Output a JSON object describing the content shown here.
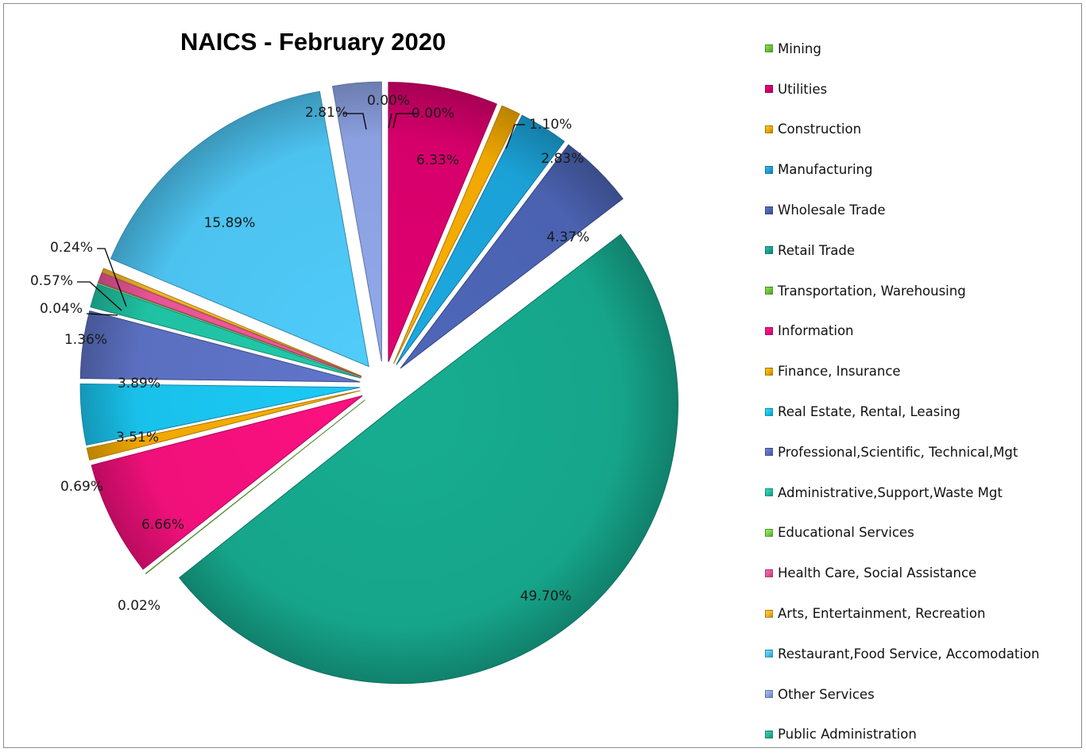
{
  "chart_data": {
    "type": "pie",
    "title": "NAICS - February 2020",
    "legend_position": "right",
    "slices": [
      {
        "label": "Mining",
        "value": 0.0,
        "display": "0.00%",
        "color": "#6cc23a"
      },
      {
        "label": "Utilities",
        "value": 6.33,
        "display": "6.33%",
        "color": "#d6006b"
      },
      {
        "label": "Construction",
        "value": 1.1,
        "display": "1.10%",
        "color": "#f0a800"
      },
      {
        "label": "Manufacturing",
        "value": 2.83,
        "display": "2.83%",
        "color": "#1ba1d6"
      },
      {
        "label": "Wholesale Trade",
        "value": 4.37,
        "display": "4.37%",
        "color": "#4a62b0"
      },
      {
        "label": "Retail Trade",
        "value": 49.7,
        "display": "49.70%",
        "color": "#16a58a"
      },
      {
        "label": "Transportation, Warehousing",
        "value": 0.02,
        "display": "0.02%",
        "color": "#6cc23a"
      },
      {
        "label": "Information",
        "value": 6.66,
        "display": "6.66%",
        "color": "#f0107a"
      },
      {
        "label": "Finance, Insurance",
        "value": 0.69,
        "display": "0.69%",
        "color": "#f0a800"
      },
      {
        "label": "Real Estate, Rental, Leasing",
        "value": 3.51,
        "display": "3.51%",
        "color": "#19c1ea"
      },
      {
        "label": "Professional,Scientific, Technical,Mgt",
        "value": 3.89,
        "display": "3.89%",
        "color": "#5b6fc0"
      },
      {
        "label": "Administrative,Support,Waste Mgt",
        "value": 1.36,
        "display": "1.36%",
        "color": "#1fc1a2"
      },
      {
        "label": "Educational Services",
        "value": 0.04,
        "display": "0.04%",
        "color": "#7ad04a"
      },
      {
        "label": "Health Care, Social Assistance",
        "value": 0.57,
        "display": "0.57%",
        "color": "#e85596"
      },
      {
        "label": "Arts, Entertainment, Recreation",
        "value": 0.24,
        "display": "0.24%",
        "color": "#f2b22a"
      },
      {
        "label": "Restaurant,Food Service, Accomodation",
        "value": 15.89,
        "display": "15.89%",
        "color": "#4cc2ef"
      },
      {
        "label": "Other Services",
        "value": 2.81,
        "display": "2.81%",
        "color": "#8aa0e0"
      },
      {
        "label": "Public Administration",
        "value": 0.0,
        "display": "0.00%",
        "color": "#2ab59a"
      }
    ]
  }
}
